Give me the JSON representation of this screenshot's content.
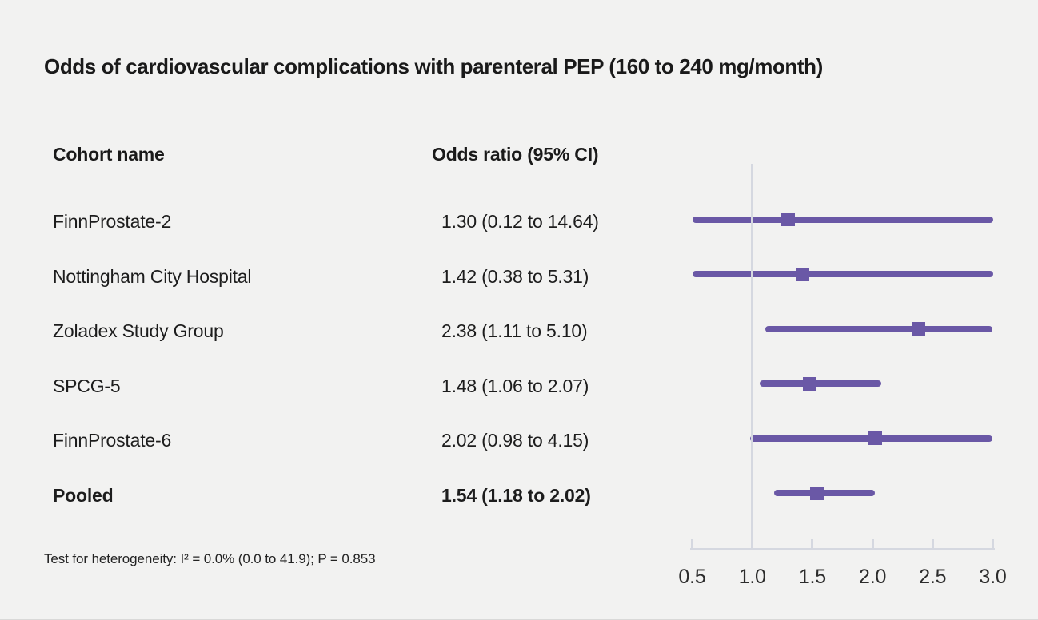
{
  "title": "Odds of cardiovascular complications with parenteral PEP (160 to 240 mg/month)",
  "table": {
    "col_cohort": "Cohort name",
    "col_or": "Odds ratio (95% CI)"
  },
  "footer_note": "Test for heterogeneity: I² = 0.0% (0.0 to 41.9); P = 0.853",
  "chart_data": {
    "type": "forest",
    "title": "Odds of cardiovascular complications with parenteral PEP (160 to 240 mg/month)",
    "x_ticks": [
      "0.5",
      "1.0",
      "1.5",
      "2.0",
      "2.5",
      "3.0"
    ],
    "xlim": [
      0.5,
      3.0
    ],
    "reference_value": 1.0,
    "rows": [
      {
        "name": "FinnProstate-2",
        "or_label": "1.30 (0.12 to 14.64)",
        "or": 1.3,
        "ci_low": 0.12,
        "ci_high": 14.64,
        "bold": false
      },
      {
        "name": "Nottingham City Hospital",
        "or_label": "1.42 (0.38 to 5.31)",
        "or": 1.42,
        "ci_low": 0.38,
        "ci_high": 5.31,
        "bold": false
      },
      {
        "name": "Zoladex Study Group",
        "or_label": "2.38 (1.11 to 5.10)",
        "or": 2.38,
        "ci_low": 1.11,
        "ci_high": 5.1,
        "bold": false
      },
      {
        "name": "SPCG-5",
        "or_label": "1.48 (1.06 to 2.07)",
        "or": 1.48,
        "ci_low": 1.06,
        "ci_high": 2.07,
        "bold": false
      },
      {
        "name": "FinnProstate-6",
        "or_label": "2.02 (0.98 to 4.15)",
        "or": 2.02,
        "ci_low": 0.98,
        "ci_high": 4.15,
        "bold": false
      },
      {
        "name": "Pooled",
        "or_label": "1.54 (1.18 to 2.02)",
        "or": 1.54,
        "ci_low": 1.18,
        "ci_high": 2.02,
        "bold": true
      }
    ],
    "colors": {
      "marker_line": "#6a58a6",
      "axis": "#d5d8e0",
      "background": "#f2f2f1",
      "text": "#1a1a1a"
    },
    "legend_position": "none",
    "grid": false
  }
}
